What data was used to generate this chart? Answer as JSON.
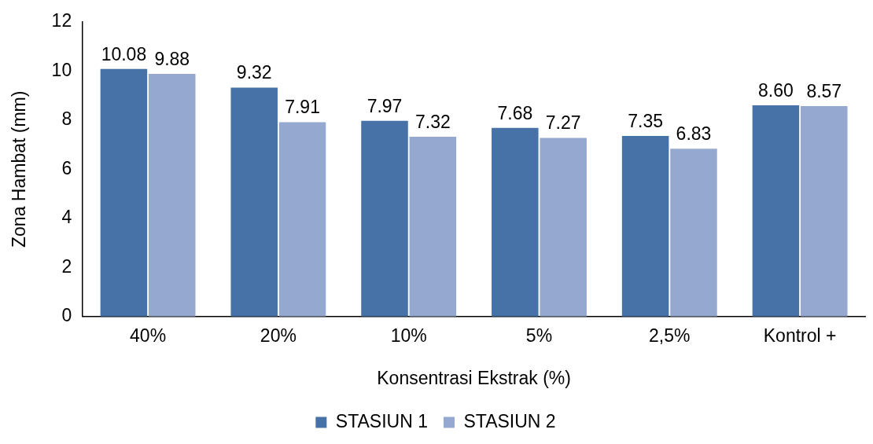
{
  "chart_data": {
    "type": "bar",
    "xlabel": "Konsentrasi Ekstrak (%)",
    "ylabel": "Zona Hambat (mm)",
    "categories": [
      "40%",
      "20%",
      "10%",
      "5%",
      "2,5%",
      "Kontrol +"
    ],
    "series": [
      {
        "name": "STASIUN 1",
        "color": "#4672a8",
        "values": [
          10.08,
          9.32,
          7.97,
          7.68,
          7.35,
          8.6
        ],
        "value_labels": [
          "10.08",
          "9.32",
          "7.97",
          "7.68",
          "7.35",
          "8.60"
        ]
      },
      {
        "name": "STASIUN 2",
        "color": "#95a9d0",
        "values": [
          9.88,
          7.91,
          7.32,
          7.27,
          6.83,
          8.57
        ],
        "value_labels": [
          "9.88",
          "7.91",
          "7.32",
          "7.27",
          "6.83",
          "8.57"
        ]
      }
    ],
    "ylim": [
      0,
      12
    ],
    "yticks": [
      0,
      2,
      4,
      6,
      8,
      10,
      12
    ],
    "grid": false,
    "legend": "bottom"
  }
}
